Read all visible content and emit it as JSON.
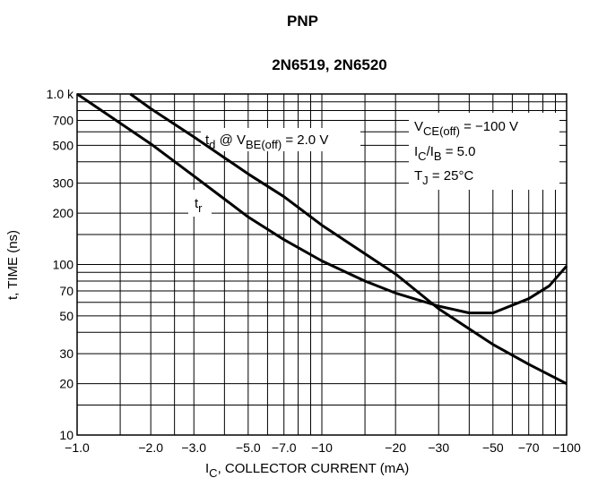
{
  "header": {
    "title": "PNP",
    "subtitle": "2N6519, 2N6520"
  },
  "chart_data": {
    "type": "line",
    "title": "2N6519, 2N6520",
    "xlabel": {
      "main": "I",
      "sub": "C",
      "rest": ", COLLECTOR CURRENT (mA)"
    },
    "ylabel": "t, TIME (ns)",
    "x_scale": "log",
    "y_scale": "log",
    "xlim": [
      -1.0,
      -100
    ],
    "ylim": [
      10,
      1000
    ],
    "x_ticks": [
      {
        "value": 1,
        "label": "−1.0"
      },
      {
        "value": 2,
        "label": "−2.0"
      },
      {
        "value": 3,
        "label": "−3.0"
      },
      {
        "value": 5,
        "label": "−5.0"
      },
      {
        "value": 7,
        "label": "−7.0"
      },
      {
        "value": 10,
        "label": "−10"
      },
      {
        "value": 20,
        "label": "−20"
      },
      {
        "value": 30,
        "label": "−30"
      },
      {
        "value": 50,
        "label": "−50"
      },
      {
        "value": 70,
        "label": "−70"
      },
      {
        "value": 100,
        "label": "−100"
      }
    ],
    "y_ticks": [
      {
        "value": 10,
        "label": "10"
      },
      {
        "value": 20,
        "label": "20"
      },
      {
        "value": 30,
        "label": "30"
      },
      {
        "value": 50,
        "label": "50"
      },
      {
        "value": 70,
        "label": "70"
      },
      {
        "value": 100,
        "label": "100"
      },
      {
        "value": 200,
        "label": "200"
      },
      {
        "value": 300,
        "label": "300"
      },
      {
        "value": 500,
        "label": "500"
      },
      {
        "value": 700,
        "label": "700"
      },
      {
        "value": 1000,
        "label": "1.0 k"
      }
    ],
    "grid": true,
    "series": [
      {
        "name": "td",
        "label": {
          "t": "t",
          "tsub": "d",
          "mid": " @ V",
          "vsub": "BE(off)",
          "rest": " = 2.0 V"
        },
        "points": [
          [
            -1.65,
            1000
          ],
          [
            -2,
            820
          ],
          [
            -3,
            560
          ],
          [
            -5,
            340
          ],
          [
            -7,
            250
          ],
          [
            -10,
            170
          ],
          [
            -20,
            88
          ],
          [
            -30,
            55
          ],
          [
            -50,
            34
          ],
          [
            -70,
            26
          ],
          [
            -100,
            20
          ]
        ]
      },
      {
        "name": "tr",
        "label": {
          "t": "t",
          "tsub": "r"
        },
        "points": [
          [
            -1,
            1000
          ],
          [
            -2,
            510
          ],
          [
            -3,
            330
          ],
          [
            -5,
            190
          ],
          [
            -7,
            140
          ],
          [
            -10,
            105
          ],
          [
            -15,
            80
          ],
          [
            -20,
            68
          ],
          [
            -30,
            57
          ],
          [
            -40,
            52
          ],
          [
            -50,
            52
          ],
          [
            -70,
            63
          ],
          [
            -85,
            75
          ],
          [
            -100,
            98
          ]
        ]
      }
    ],
    "conditions": [
      {
        "main": "V",
        "sub": "CE(off)",
        "rest": " = −100 V"
      },
      {
        "main": "I",
        "sub": "C",
        "mid": "/I",
        "sub2": "B",
        "rest": " = 5.0"
      },
      {
        "main": "T",
        "sub": "J",
        "rest": " = 25°C"
      }
    ]
  }
}
